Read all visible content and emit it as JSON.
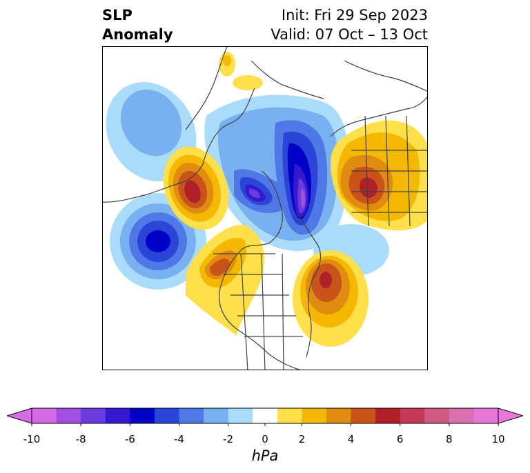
{
  "header": {
    "title_line1": "SLP",
    "title_line2": "Anomaly",
    "init_text": "Init: Fri 29 Sep 2023",
    "valid_text": "Valid: 07 Oct – 13 Oct"
  },
  "colorbar": {
    "units": "hPa",
    "tick_labels": [
      "-10",
      "-8",
      "-6",
      "-4",
      "-2",
      "0",
      "2",
      "4",
      "6",
      "8",
      "10"
    ],
    "levels": [
      -10,
      -9,
      -8,
      -7,
      -6,
      -5,
      -4,
      -3,
      -2,
      -1,
      1,
      2,
      3,
      4,
      5,
      6,
      7,
      8,
      9,
      10
    ],
    "colors": [
      "#d66be8",
      "#a04fe0",
      "#6a3bdd",
      "#3419d0",
      "#0000c8",
      "#2a45d8",
      "#4f78e6",
      "#78b0f0",
      "#aadcfa",
      "#ffffff",
      "#ffe04a",
      "#f4b800",
      "#e08c10",
      "#c8541a",
      "#b0202a",
      "#c23a55",
      "#d05a80",
      "#da70b0",
      "#e878d8"
    ],
    "extend_min_color": "#d66be8",
    "extend_max_color": "#e878d8"
  },
  "map": {
    "projection": "north-polar-stereographic",
    "field": "SLP anomaly"
  }
}
